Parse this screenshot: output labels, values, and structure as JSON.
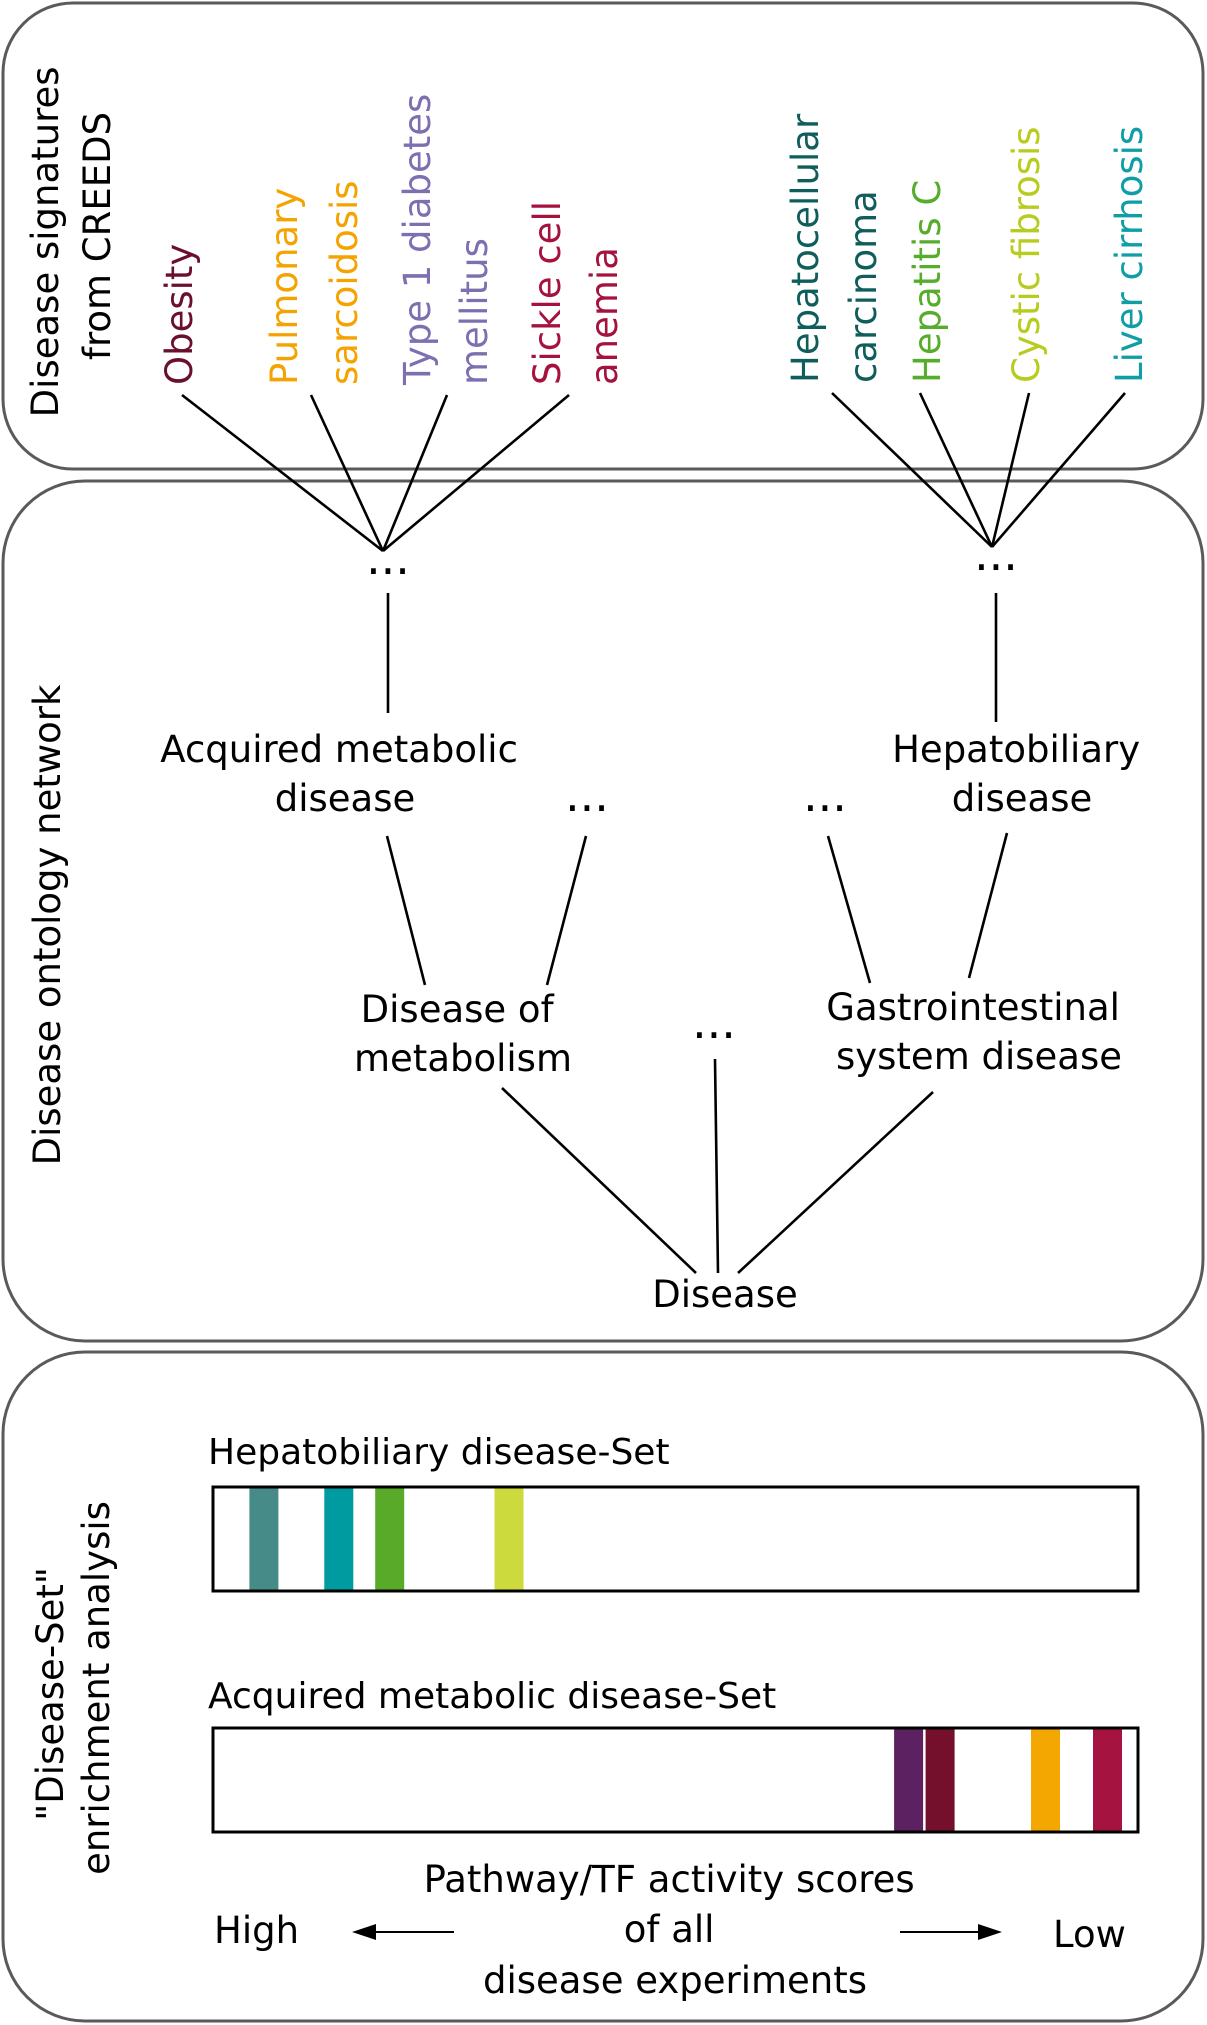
{
  "panels": {
    "signatures_title": [
      "Disease signatures",
      "from CREEDS"
    ],
    "ontology_title": "Disease ontology network",
    "enrichment_title": [
      "\"Disease-Set\"",
      "enrichment analysis"
    ]
  },
  "signatures": {
    "left_group": [
      {
        "lines": [
          "Obesity"
        ],
        "color": "#6b0f2f"
      },
      {
        "lines": [
          "Pulmonary",
          "sarcoidosis"
        ],
        "color": "#f4a300"
      },
      {
        "lines": [
          "Type 1 diabetes",
          "mellitus"
        ],
        "color": "#7d6fb0"
      },
      {
        "lines": [
          "Sickle cell",
          "anemia"
        ],
        "color": "#a5123e"
      }
    ],
    "right_group": [
      {
        "lines": [
          "Hepatocellular",
          "carcinoma"
        ],
        "color": "#0f5e5c"
      },
      {
        "lines": [
          "Hepatitis C"
        ],
        "color": "#56ad2b"
      },
      {
        "lines": [
          "Cystic fibrosis"
        ],
        "color": "#b8cc1f"
      },
      {
        "lines": [
          "Liver cirrhosis"
        ],
        "color": "#0f9ea6"
      }
    ]
  },
  "ontology": {
    "ellipsis": "...",
    "acquired_metabolic": [
      "Acquired metabolic",
      "disease"
    ],
    "hepatobiliary": [
      "Hepatobiliary",
      "disease"
    ],
    "disease_of_metabolism": [
      "Disease of",
      "metabolism"
    ],
    "gastrointestinal": [
      "Gastrointestinal",
      "system disease"
    ],
    "root": "Disease"
  },
  "enrichment": {
    "sets": [
      {
        "label": "Hepatobiliary disease-Set",
        "stripes": [
          {
            "position": 0.055,
            "color": "#468b87"
          },
          {
            "position": 0.136,
            "color": "#009aa1"
          },
          {
            "position": 0.191,
            "color": "#5aaa2a"
          },
          {
            "position": 0.32,
            "color": "#ccda3e"
          }
        ]
      },
      {
        "label": "Acquired metabolic disease-Set",
        "stripes": [
          {
            "position": 0.752,
            "color": "#5c2160"
          },
          {
            "position": 0.786,
            "color": "#74102b"
          },
          {
            "position": 0.9,
            "color": "#f4a700"
          },
          {
            "position": 0.967,
            "color": "#a51440"
          }
        ]
      }
    ],
    "axis": {
      "caption": [
        "Pathway/TF activity scores",
        "of all",
        "disease experiments"
      ],
      "high_label": "High",
      "low_label": "Low"
    }
  }
}
